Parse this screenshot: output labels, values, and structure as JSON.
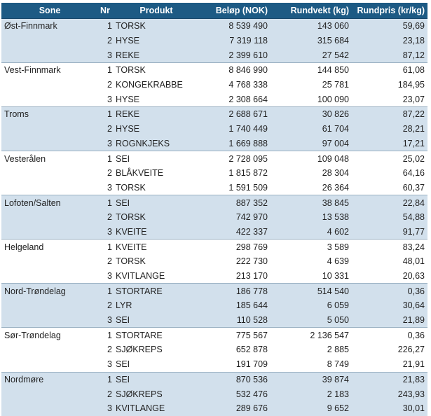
{
  "headers": {
    "sone": "Sone",
    "nr": "Nr",
    "produkt": "Produkt",
    "belop": "Beløp (NOK)",
    "rundvekt": "Rundvekt (kg)",
    "rundpris": "Rundpris (kr/kg)"
  },
  "groups": [
    {
      "sone": "Øst-Finnmark",
      "rows": [
        {
          "nr": "1",
          "produkt": "TORSK",
          "belop": "8 539 490",
          "rundvekt": "143 060",
          "rundpris": "59,69"
        },
        {
          "nr": "2",
          "produkt": "HYSE",
          "belop": "7 319 118",
          "rundvekt": "315 684",
          "rundpris": "23,18"
        },
        {
          "nr": "3",
          "produkt": "REKE",
          "belop": "2 399 610",
          "rundvekt": "27 542",
          "rundpris": "87,12"
        }
      ]
    },
    {
      "sone": "Vest-Finnmark",
      "rows": [
        {
          "nr": "1",
          "produkt": "TORSK",
          "belop": "8 846 990",
          "rundvekt": "144 850",
          "rundpris": "61,08"
        },
        {
          "nr": "2",
          "produkt": "KONGEKRABBE",
          "belop": "4 768 338",
          "rundvekt": "25 781",
          "rundpris": "184,95"
        },
        {
          "nr": "3",
          "produkt": "HYSE",
          "belop": "2 308 664",
          "rundvekt": "100 090",
          "rundpris": "23,07"
        }
      ]
    },
    {
      "sone": "Troms",
      "rows": [
        {
          "nr": "1",
          "produkt": "REKE",
          "belop": "2 688 671",
          "rundvekt": "30 826",
          "rundpris": "87,22"
        },
        {
          "nr": "2",
          "produkt": "HYSE",
          "belop": "1 740 449",
          "rundvekt": "61 704",
          "rundpris": "28,21"
        },
        {
          "nr": "3",
          "produkt": "ROGNKJEKS",
          "belop": "1 669 888",
          "rundvekt": "97 004",
          "rundpris": "17,21"
        }
      ]
    },
    {
      "sone": "Vesterålen",
      "rows": [
        {
          "nr": "1",
          "produkt": "SEI",
          "belop": "2 728 095",
          "rundvekt": "109 048",
          "rundpris": "25,02"
        },
        {
          "nr": "2",
          "produkt": "BLÅKVEITE",
          "belop": "1 815 872",
          "rundvekt": "28 304",
          "rundpris": "64,16"
        },
        {
          "nr": "3",
          "produkt": "TORSK",
          "belop": "1 591 509",
          "rundvekt": "26 364",
          "rundpris": "60,37"
        }
      ]
    },
    {
      "sone": "Lofoten/Salten",
      "rows": [
        {
          "nr": "1",
          "produkt": "SEI",
          "belop": "887 352",
          "rundvekt": "38 845",
          "rundpris": "22,84"
        },
        {
          "nr": "2",
          "produkt": "TORSK",
          "belop": "742 970",
          "rundvekt": "13 538",
          "rundpris": "54,88"
        },
        {
          "nr": "3",
          "produkt": "KVEITE",
          "belop": "422 337",
          "rundvekt": "4 602",
          "rundpris": "91,77"
        }
      ]
    },
    {
      "sone": "Helgeland",
      "rows": [
        {
          "nr": "1",
          "produkt": "KVEITE",
          "belop": "298 769",
          "rundvekt": "3 589",
          "rundpris": "83,24"
        },
        {
          "nr": "2",
          "produkt": "TORSK",
          "belop": "222 730",
          "rundvekt": "4 639",
          "rundpris": "48,01"
        },
        {
          "nr": "3",
          "produkt": "KVITLANGE",
          "belop": "213 170",
          "rundvekt": "10 331",
          "rundpris": "20,63"
        }
      ]
    },
    {
      "sone": "Nord-Trøndelag",
      "rows": [
        {
          "nr": "1",
          "produkt": "STORTARE",
          "belop": "186 778",
          "rundvekt": "514 540",
          "rundpris": "0,36"
        },
        {
          "nr": "2",
          "produkt": "LYR",
          "belop": "185 644",
          "rundvekt": "6 059",
          "rundpris": "30,64"
        },
        {
          "nr": "3",
          "produkt": "SEI",
          "belop": "110 528",
          "rundvekt": "5 050",
          "rundpris": "21,89"
        }
      ]
    },
    {
      "sone": "Sør-Trøndelag",
      "rows": [
        {
          "nr": "1",
          "produkt": "STORTARE",
          "belop": "775 567",
          "rundvekt": "2 136 547",
          "rundpris": "0,36"
        },
        {
          "nr": "2",
          "produkt": "SJØKREPS",
          "belop": "652 878",
          "rundvekt": "2 885",
          "rundpris": "226,27"
        },
        {
          "nr": "3",
          "produkt": "SEI",
          "belop": "191 709",
          "rundvekt": "8 749",
          "rundpris": "21,91"
        }
      ]
    },
    {
      "sone": "Nordmøre",
      "rows": [
        {
          "nr": "1",
          "produkt": "SEI",
          "belop": "870 536",
          "rundvekt": "39 874",
          "rundpris": "21,83"
        },
        {
          "nr": "2",
          "produkt": "SJØKREPS",
          "belop": "532 476",
          "rundvekt": "2 183",
          "rundpris": "243,93"
        },
        {
          "nr": "3",
          "produkt": "KVITLANGE",
          "belop": "289 676",
          "rundvekt": "9 652",
          "rundpris": "30,01"
        }
      ]
    }
  ],
  "colors": {
    "header_bg": "#1d5a84",
    "header_text": "#ffffff",
    "shaded_row": "#d2e0ec"
  }
}
